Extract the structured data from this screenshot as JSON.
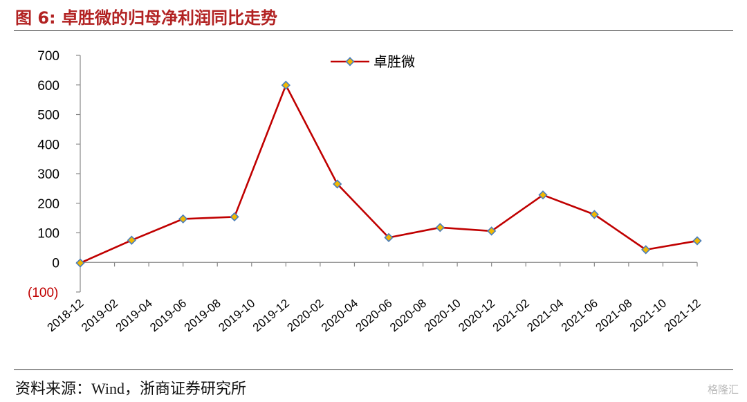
{
  "figure": {
    "title": "图 6: 卓胜微的归母净利润同比走势",
    "source": "资料来源：Wind，浙商证券研究所",
    "watermark": "格隆汇"
  },
  "chart_data": {
    "type": "line",
    "title": "",
    "xlabel": "",
    "ylabel": "",
    "ylim": [
      -100,
      700
    ],
    "yticks": [
      -100,
      0,
      100,
      200,
      300,
      400,
      500,
      600,
      700
    ],
    "ytick_labels": [
      "(100)",
      "0",
      "100",
      "200",
      "300",
      "400",
      "500",
      "600",
      "700"
    ],
    "xtick_labels": [
      "2018-12",
      "2019-02",
      "2019-04",
      "2019-06",
      "2019-08",
      "2019-10",
      "2019-12",
      "2020-02",
      "2020-04",
      "2020-06",
      "2020-08",
      "2020-10",
      "2020-12",
      "2021-02",
      "2021-04",
      "2021-06",
      "2021-08",
      "2021-10",
      "2021-12"
    ],
    "x": [
      "2018-12",
      "2019-03",
      "2019-06",
      "2019-09",
      "2019-12",
      "2020-03",
      "2020-06",
      "2020-09",
      "2020-12",
      "2021-03",
      "2021-06",
      "2021-09",
      "2021-12"
    ],
    "series": [
      {
        "name": "卓胜微",
        "values": [
          -2,
          75,
          147,
          154,
          599,
          265,
          84,
          118,
          106,
          228,
          162,
          43,
          73
        ],
        "color": "#c00000",
        "marker_color": "#f2b800",
        "marker_edge": "#4a7ebb"
      }
    ],
    "grid": false,
    "legend": "top-center"
  }
}
